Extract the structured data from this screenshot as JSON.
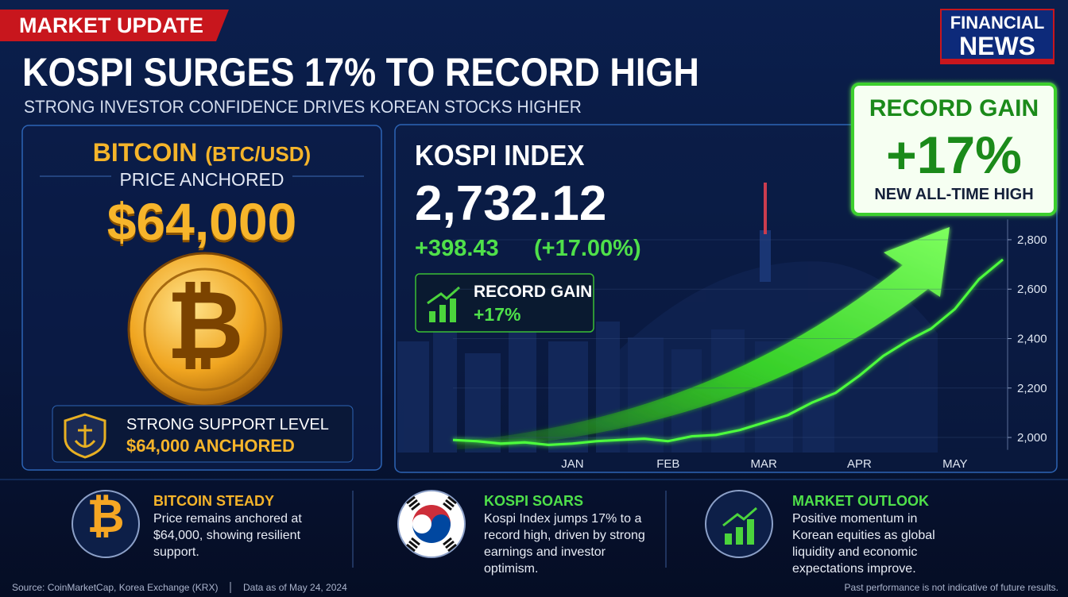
{
  "header": {
    "badge": "MARKET UPDATE",
    "title": "KOSPI SURGES 17% TO RECORD HIGH",
    "subtitle": "STRONG INVESTOR CONFIDENCE DRIVES KOREAN STOCKS HIGHER",
    "brand_top": "FINANCIAL",
    "brand_bottom": "NEWS"
  },
  "bitcoin_panel": {
    "name": "BITCOIN",
    "pair": "(BTC/USD)",
    "status": "PRICE ANCHORED",
    "price": "$64,000",
    "coin_symbol": "₿",
    "support_title": "STRONG SUPPORT LEVEL",
    "support_value": "$64,000 ANCHORED"
  },
  "kospi_panel": {
    "name": "KOSPI INDEX",
    "value": "2,732.12",
    "change": "+398.43",
    "change_pct": "(+17.00%)",
    "badge_title": "RECORD GAIN",
    "badge_value": "+17%"
  },
  "callout": {
    "title": "RECORD GAIN",
    "value": "+17%",
    "note": "NEW ALL-TIME HIGH"
  },
  "chart_data": {
    "type": "line",
    "categories": [
      null,
      null,
      null,
      null,
      null,
      "JAN",
      null,
      null,
      null,
      "FEB",
      null,
      null,
      null,
      "MAR",
      null,
      null,
      null,
      "APR",
      null,
      null,
      null,
      "MAY",
      null,
      null
    ],
    "values": [
      1990,
      1985,
      1975,
      1980,
      1970,
      1975,
      1985,
      1990,
      1995,
      1985,
      2005,
      2010,
      2030,
      2060,
      2090,
      2140,
      2180,
      2250,
      2330,
      2390,
      2440,
      2520,
      2640,
      2720
    ],
    "color": "#4dff3c",
    "ylim": [
      1950,
      2850
    ],
    "yticks": [
      {
        "value": 2000,
        "label": "2,000"
      },
      {
        "value": 2200,
        "label": "2,200"
      },
      {
        "value": 2400,
        "label": "2,400"
      },
      {
        "value": 2600,
        "label": "2,600"
      },
      {
        "value": 2800,
        "label": "2,800"
      }
    ],
    "grid": true
  },
  "cards": [
    {
      "title": "BITCOIN STEADY",
      "text": "Price remains anchored at $64,000, showing resilient support."
    },
    {
      "title": "KOSPI SOARS",
      "text": "Kospi Index jumps 17% to a record high, driven by strong earnings and investor optimism."
    },
    {
      "title": "MARKET OUTLOOK",
      "text": "Positive momentum in Korean equities as global liquidity and economic expectations improve."
    }
  ],
  "footer": {
    "source": "Source: CoinMarketCap, Korea Exchange (KRX)",
    "date": "Data as of May 24, 2024",
    "disclaimer": "Past performance is not indicative of future results."
  }
}
